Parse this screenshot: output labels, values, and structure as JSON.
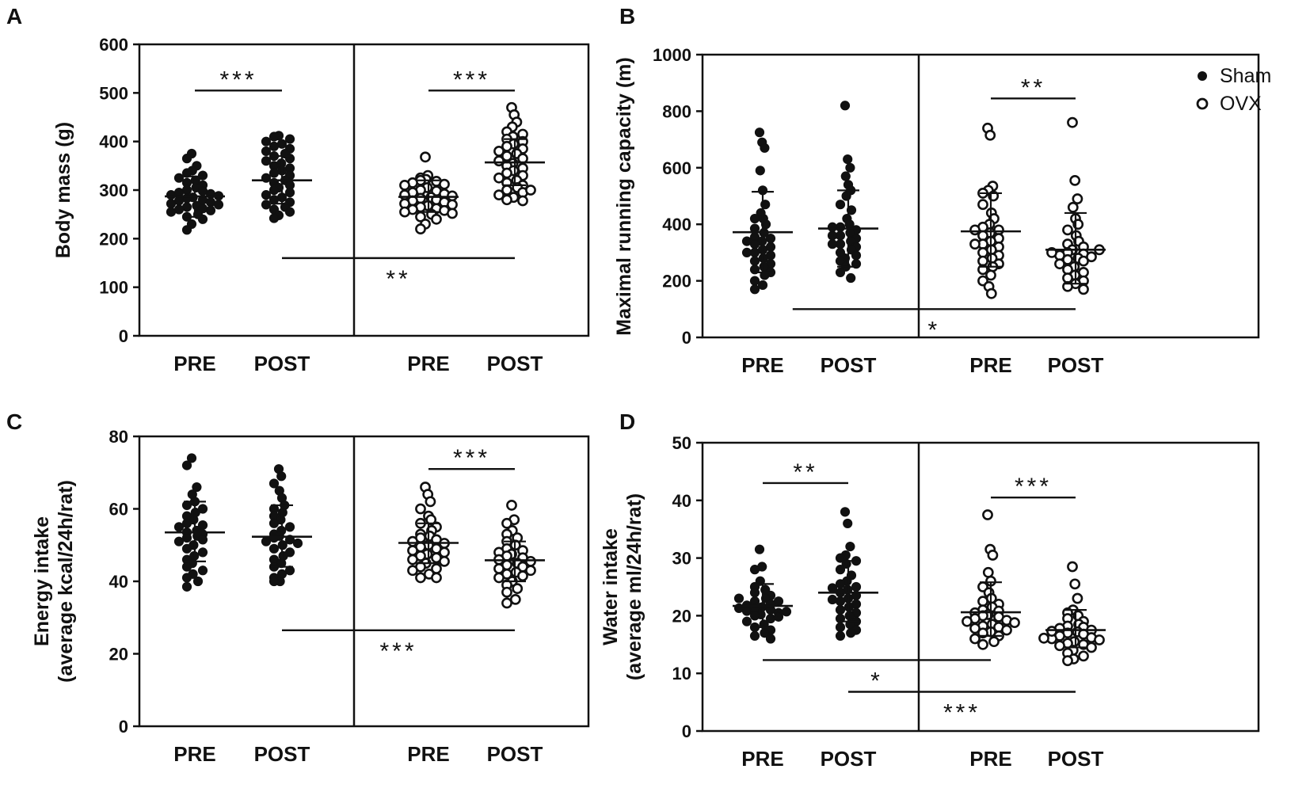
{
  "legend": {
    "entries": [
      {
        "name": "Sham",
        "marker": "filled-circle"
      },
      {
        "name": "OVX",
        "marker": "open-circle"
      }
    ]
  },
  "colors": {
    "ink": "#111111",
    "background": "#ffffff"
  },
  "chart_data": [
    {
      "type": "scatter",
      "panel": "A",
      "title": "",
      "ylabel": [
        "Body mass (g)"
      ],
      "ylim": [
        0,
        600
      ],
      "yticks": [
        0,
        100,
        200,
        300,
        400,
        500,
        600
      ],
      "categories": [
        "PRE",
        "POST",
        "PRE",
        "POST"
      ],
      "groups": [
        "Sham",
        "Sham",
        "OVX",
        "OVX"
      ],
      "series": [
        {
          "name": "Sham PRE",
          "group": "Sham",
          "mean": 287,
          "sd_low": 245,
          "sd_high": 328,
          "values": [
            375,
            365,
            350,
            340,
            335,
            330,
            325,
            320,
            315,
            310,
            305,
            300,
            298,
            295,
            292,
            290,
            288,
            285,
            283,
            280,
            278,
            275,
            272,
            270,
            268,
            265,
            262,
            260,
            258,
            255,
            250,
            245,
            240,
            230,
            218
          ]
        },
        {
          "name": "Sham POST",
          "group": "Sham",
          "mean": 320,
          "sd_low": 272,
          "sd_high": 370,
          "values": [
            412,
            410,
            405,
            400,
            395,
            390,
            385,
            380,
            375,
            370,
            365,
            360,
            355,
            350,
            345,
            340,
            335,
            330,
            325,
            320,
            315,
            310,
            305,
            300,
            295,
            290,
            285,
            280,
            275,
            270,
            265,
            260,
            255,
            248,
            242
          ]
        },
        {
          "name": "OVX PRE",
          "group": "OVX",
          "mean": 286,
          "sd_low": 255,
          "sd_high": 320,
          "values": [
            368,
            330,
            325,
            322,
            320,
            318,
            315,
            312,
            310,
            305,
            300,
            298,
            295,
            292,
            290,
            288,
            285,
            283,
            280,
            278,
            275,
            272,
            270,
            268,
            265,
            262,
            260,
            258,
            255,
            252,
            250,
            245,
            240,
            230,
            220
          ]
        },
        {
          "name": "OVX POST",
          "group": "OVX",
          "mean": 357,
          "sd_low": 310,
          "sd_high": 405,
          "values": [
            470,
            455,
            440,
            430,
            420,
            415,
            410,
            405,
            400,
            395,
            390,
            385,
            380,
            375,
            370,
            365,
            360,
            355,
            350,
            345,
            340,
            335,
            330,
            325,
            320,
            315,
            310,
            305,
            300,
            295,
            290,
            285,
            280,
            278,
            300
          ]
        }
      ],
      "annotations": [
        {
          "text": "***",
          "from": 0,
          "to": 1,
          "y": 505,
          "below": false
        },
        {
          "text": "***",
          "from": 2,
          "to": 3,
          "y": 505,
          "below": false
        },
        {
          "text": "**",
          "from": 1,
          "to": 3,
          "y": 160,
          "below": true
        }
      ]
    },
    {
      "type": "scatter",
      "panel": "B",
      "title": "",
      "ylabel": [
        "Maximal running capacity (m)"
      ],
      "ylim": [
        0,
        1000
      ],
      "yticks": [
        0,
        200,
        400,
        600,
        800,
        1000
      ],
      "categories": [
        "PRE",
        "POST",
        "PRE",
        "POST"
      ],
      "groups": [
        "Sham",
        "Sham",
        "OVX",
        "OVX"
      ],
      "series": [
        {
          "name": "Sham PRE",
          "group": "Sham",
          "mean": 372,
          "sd_low": 230,
          "sd_high": 515,
          "values": [
            725,
            690,
            670,
            590,
            520,
            470,
            440,
            420,
            400,
            385,
            370,
            355,
            340,
            330,
            320,
            310,
            300,
            290,
            280,
            270,
            260,
            250,
            240,
            230,
            220,
            200,
            185,
            170,
            300,
            340,
            420,
            350
          ]
        },
        {
          "name": "Sham POST",
          "group": "Sham",
          "mean": 385,
          "sd_low": 250,
          "sd_high": 520,
          "values": [
            820,
            630,
            600,
            570,
            540,
            520,
            500,
            470,
            450,
            420,
            400,
            390,
            380,
            370,
            360,
            350,
            340,
            330,
            320,
            310,
            300,
            290,
            280,
            270,
            260,
            250,
            230,
            210,
            330,
            360,
            390
          ]
        },
        {
          "name": "OVX PRE",
          "group": "OVX",
          "mean": 375,
          "sd_low": 250,
          "sd_high": 510,
          "values": [
            740,
            715,
            535,
            520,
            510,
            500,
            470,
            440,
            420,
            400,
            390,
            380,
            370,
            360,
            350,
            340,
            330,
            320,
            310,
            300,
            290,
            280,
            270,
            260,
            250,
            240,
            220,
            200,
            180,
            155,
            380,
            330
          ]
        },
        {
          "name": "OVX POST",
          "group": "OVX",
          "mean": 310,
          "sd_low": 190,
          "sd_high": 440,
          "values": [
            760,
            555,
            490,
            460,
            420,
            400,
            380,
            360,
            340,
            330,
            320,
            310,
            300,
            295,
            290,
            285,
            280,
            275,
            270,
            260,
            250,
            240,
            230,
            220,
            210,
            200,
            190,
            180,
            170,
            300,
            310
          ]
        }
      ],
      "annotations": [
        {
          "text": "**",
          "from": 2,
          "to": 3,
          "y": 845,
          "below": false
        },
        {
          "text": "*",
          "from": 0.35,
          "to": 3,
          "y": 100,
          "below": true
        }
      ]
    },
    {
      "type": "scatter",
      "panel": "C",
      "title": "",
      "ylabel": [
        "Energy intake",
        "(average kcal/24h/rat)"
      ],
      "ylim": [
        0,
        80
      ],
      "yticks": [
        0,
        20,
        40,
        60,
        80
      ],
      "categories": [
        "PRE",
        "POST",
        "PRE",
        "POST"
      ],
      "groups": [
        "Sham",
        "Sham",
        "OVX",
        "OVX"
      ],
      "series": [
        {
          "name": "Sham PRE",
          "group": "Sham",
          "mean": 53.5,
          "sd_low": 45.5,
          "sd_high": 62,
          "values": [
            74,
            72,
            66,
            64,
            62,
            61,
            60,
            59,
            58,
            57,
            56,
            55.5,
            55,
            54,
            53.5,
            53,
            52.5,
            52,
            51.5,
            51,
            50,
            49,
            48,
            47,
            46,
            45,
            44,
            43,
            42,
            41,
            40,
            38.5
          ]
        },
        {
          "name": "Sham POST",
          "group": "Sham",
          "mean": 52.3,
          "sd_low": 44,
          "sd_high": 61,
          "values": [
            71,
            69,
            67,
            65,
            63,
            61,
            60,
            59,
            58,
            57,
            56,
            55,
            54,
            53,
            52.5,
            52,
            51.5,
            51,
            50,
            49,
            48,
            47,
            46,
            45,
            44,
            43,
            42,
            41,
            40,
            40,
            50.5
          ]
        },
        {
          "name": "OVX PRE",
          "group": "OVX",
          "mean": 50.6,
          "sd_low": 45,
          "sd_high": 56,
          "values": [
            66,
            64,
            62,
            60,
            58,
            57,
            56,
            55,
            54,
            53,
            52.5,
            52,
            51.5,
            51,
            50.5,
            50,
            49.5,
            49,
            48.5,
            48,
            47.5,
            47,
            46.5,
            46,
            45.5,
            45,
            44,
            43.5,
            43,
            42,
            41,
            41
          ]
        },
        {
          "name": "OVX POST",
          "group": "OVX",
          "mean": 45.8,
          "sd_low": 40,
          "sd_high": 51,
          "values": [
            61,
            57,
            56,
            54,
            53,
            52,
            51,
            50,
            49,
            48.5,
            48,
            47.5,
            47,
            46.5,
            46,
            45.5,
            45,
            44.5,
            44,
            43.5,
            43,
            42.5,
            42,
            41.5,
            41,
            40,
            39,
            38,
            37,
            35,
            34
          ]
        }
      ],
      "annotations": [
        {
          "text": "***",
          "from": 2,
          "to": 3,
          "y": 71,
          "below": false
        },
        {
          "text": "***",
          "from": 1,
          "to": 3,
          "y": 26.5,
          "below": true
        }
      ]
    },
    {
      "type": "scatter",
      "panel": "D",
      "title": "",
      "ylabel": [
        "Water intake",
        "(average ml/24h/rat)"
      ],
      "ylim": [
        0,
        50
      ],
      "yticks": [
        0,
        10,
        20,
        30,
        40,
        50
      ],
      "categories": [
        "PRE",
        "POST",
        "PRE",
        "POST"
      ],
      "groups": [
        "Sham",
        "Sham",
        "OVX",
        "OVX"
      ],
      "series": [
        {
          "name": "Sham PRE",
          "group": "Sham",
          "mean": 21.7,
          "sd_low": 18,
          "sd_high": 25.5,
          "values": [
            31.5,
            28.5,
            28,
            26,
            25,
            24.5,
            24,
            23.5,
            23,
            22.5,
            22,
            21.8,
            21.5,
            21.2,
            21,
            20.8,
            20.5,
            20.2,
            20,
            19.5,
            19,
            18.5,
            18,
            17.5,
            17,
            16.5,
            16,
            22.5,
            23,
            19.8,
            21.3,
            20.7
          ]
        },
        {
          "name": "Sham POST",
          "group": "Sham",
          "mean": 24,
          "sd_low": 19,
          "sd_high": 29.5,
          "values": [
            38,
            36,
            32,
            30.5,
            30,
            29.5,
            29,
            28,
            27,
            26,
            25.5,
            25,
            24.5,
            24,
            23.5,
            23,
            22.5,
            22,
            21.5,
            21,
            20.5,
            20,
            19.5,
            19,
            18.5,
            18,
            17.5,
            17,
            16.5,
            24.8,
            22.8
          ]
        },
        {
          "name": "OVX PRE",
          "group": "OVX",
          "mean": 20.6,
          "sd_low": 16.5,
          "sd_high": 25.8,
          "values": [
            37.5,
            31.5,
            30.5,
            27.5,
            26,
            25,
            24,
            23,
            22.5,
            22,
            21.5,
            21,
            20.8,
            20.5,
            20.2,
            20,
            19.8,
            19.5,
            19.2,
            19,
            18.8,
            18.5,
            18.2,
            18,
            17.8,
            17.5,
            17.2,
            17,
            16.5,
            16,
            15.5,
            15
          ]
        },
        {
          "name": "OVX POST",
          "group": "OVX",
          "mean": 17.5,
          "sd_low": 14.5,
          "sd_high": 21,
          "values": [
            28.5,
            25.5,
            23,
            21,
            20.5,
            20,
            19.5,
            19,
            18.5,
            18.2,
            18,
            17.8,
            17.5,
            17.2,
            17,
            16.8,
            16.5,
            16.2,
            16,
            15.8,
            15.5,
            15.2,
            15,
            14.8,
            14.5,
            14,
            13.5,
            13,
            12.5,
            12.2,
            17.3,
            16.1
          ]
        }
      ],
      "annotations": [
        {
          "text": "**",
          "from": 0,
          "to": 1,
          "y": 43,
          "below": false
        },
        {
          "text": "***",
          "from": 2,
          "to": 3,
          "y": 40.5,
          "below": false
        },
        {
          "text": "*",
          "from": 0,
          "to": 2,
          "y": 12.3,
          "below": true
        },
        {
          "text": "***",
          "from": 1,
          "to": 3,
          "y": 6.8,
          "below": true
        }
      ]
    }
  ]
}
